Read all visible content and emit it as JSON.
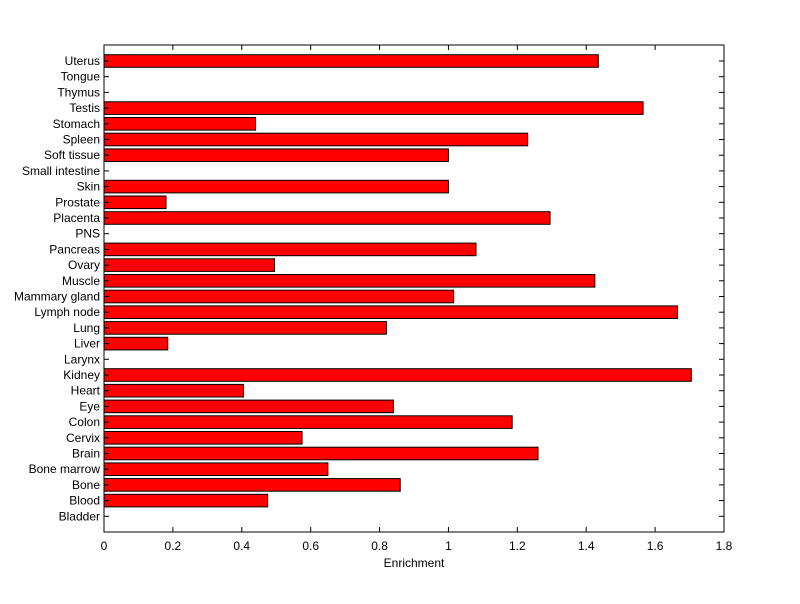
{
  "chart_data": {
    "type": "bar",
    "orientation": "horizontal",
    "xlabel": "Enrichment",
    "ylabel": "",
    "title": "",
    "xlim": [
      0,
      1.8
    ],
    "xticks": [
      "0",
      "0.2",
      "0.4",
      "0.6",
      "0.8",
      "1",
      "1.2",
      "1.4",
      "1.6",
      "1.8"
    ],
    "grid": false,
    "categories": [
      "Uterus",
      "Tongue",
      "Thymus",
      "Testis",
      "Stomach",
      "Spleen",
      "Soft tissue",
      "Small intestine",
      "Skin",
      "Prostate",
      "Placenta",
      "PNS",
      "Pancreas",
      "Ovary",
      "Muscle",
      "Mammary gland",
      "Lymph node",
      "Lung",
      "Liver",
      "Larynx",
      "Kidney",
      "Heart",
      "Eye",
      "Colon",
      "Cervix",
      "Brain",
      "Bone marrow",
      "Bone",
      "Blood",
      "Bladder"
    ],
    "values": [
      1.435,
      0,
      0,
      1.565,
      0.44,
      1.23,
      1.0,
      0,
      1.0,
      0.18,
      1.295,
      0,
      1.08,
      0.495,
      1.425,
      1.015,
      1.665,
      0.82,
      0.185,
      0,
      1.705,
      0.405,
      0.84,
      1.185,
      0.575,
      1.26,
      0.65,
      0.86,
      0.475,
      0
    ],
    "bar_color": "#ff0000"
  }
}
